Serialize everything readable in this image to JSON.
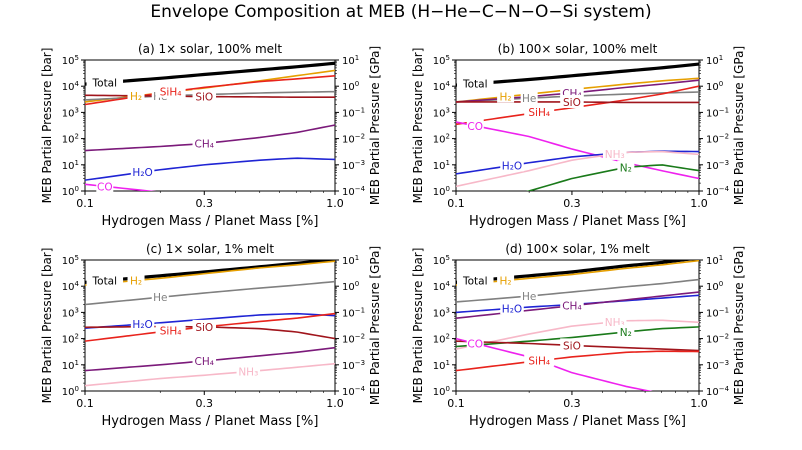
{
  "figure": {
    "title": "Envelope Composition at MEB (H−He−C−N−O−Si system)"
  },
  "colors": {
    "Total": "#000000",
    "H2": "#e69f00",
    "He": "#808080",
    "SiH4": "#e8231c",
    "SiO": "#a0151c",
    "CH4": "#7b1a7a",
    "H2O": "#1f24d4",
    "CO": "#ee22ee",
    "NH3": "#f7b8c8",
    "N2": "#1a7a1a"
  },
  "chart_data": [
    {
      "type": "line",
      "panel": "a",
      "title": "(a) 1× solar, 100% melt",
      "xlabel": "Hydrogen Mass / Planet Mass [%]",
      "ylabel": "MEB Partial Pressure [bar]",
      "y2label": "MEB Partial Pressure [GPa]",
      "xscale": "log",
      "yscale": "log",
      "xlim": [
        0.1,
        1.0
      ],
      "ylim": [
        1,
        100000
      ],
      "y2lim": [
        0.0001,
        10
      ],
      "xticks": [
        "0.1",
        "0.3",
        "1.0"
      ],
      "yticks": [
        "10^0",
        "10^1",
        "10^2",
        "10^3",
        "10^4",
        "10^5"
      ],
      "y2ticks": [
        "10^-4",
        "10^-3",
        "10^-2",
        "10^-1",
        "10^0",
        "10^1"
      ],
      "x": [
        0.1,
        0.2,
        0.3,
        0.5,
        0.7,
        1.0
      ],
      "series": [
        {
          "name": "Total",
          "values": [
            12000,
            20000,
            28000,
            42000,
            55000,
            75000
          ]
        },
        {
          "name": "H2",
          "values": [
            2500,
            5500,
            8500,
            16000,
            25000,
            40000
          ]
        },
        {
          "name": "He",
          "values": [
            3000,
            4200,
            4800,
            5500,
            5900,
            6200
          ]
        },
        {
          "name": "SiH4",
          "values": [
            2000,
            5500,
            9000,
            15000,
            19000,
            25000
          ]
        },
        {
          "name": "SiO",
          "values": [
            4500,
            4200,
            4000,
            3900,
            3800,
            3800
          ]
        },
        {
          "name": "CH4",
          "values": [
            35,
            50,
            65,
            110,
            170,
            330
          ]
        },
        {
          "name": "H2O",
          "values": [
            2.6,
            6.5,
            10,
            15,
            18,
            16
          ]
        },
        {
          "name": "CO",
          "values": [
            1.8,
            0.9,
            0.5,
            0.2,
            0.1,
            0.05
          ]
        }
      ]
    },
    {
      "type": "line",
      "panel": "b",
      "title": "(b) 100× solar, 100% melt",
      "xlabel": "Hydrogen Mass / Planet Mass [%]",
      "ylabel": "MEB Partial Pressure [bar]",
      "y2label": "MEB Partial Pressure [GPa]",
      "xscale": "log",
      "yscale": "log",
      "xlim": [
        0.1,
        1.0
      ],
      "ylim": [
        1,
        100000
      ],
      "y2lim": [
        0.0001,
        10
      ],
      "xticks": [
        "0.1",
        "0.3",
        "1.0"
      ],
      "yticks": [
        "10^0",
        "10^1",
        "10^2",
        "10^3",
        "10^4",
        "10^5"
      ],
      "y2ticks": [
        "10^-4",
        "10^-3",
        "10^-2",
        "10^-1",
        "10^0",
        "10^1"
      ],
      "x": [
        0.1,
        0.2,
        0.3,
        0.5,
        0.7,
        1.0
      ],
      "series": [
        {
          "name": "Total",
          "values": [
            11000,
            18000,
            25000,
            38000,
            50000,
            70000
          ]
        },
        {
          "name": "H2",
          "values": [
            2500,
            5000,
            7500,
            12000,
            16000,
            20000
          ]
        },
        {
          "name": "He",
          "values": [
            2500,
            3500,
            4200,
            5000,
            5500,
            6000
          ]
        },
        {
          "name": "CH4",
          "values": [
            2500,
            4000,
            5500,
            9000,
            12000,
            17000
          ]
        },
        {
          "name": "SiH4",
          "values": [
            350,
            900,
            1500,
            3000,
            5000,
            10000
          ]
        },
        {
          "name": "SiO",
          "values": [
            2500,
            2500,
            2500,
            2400,
            2400,
            2400
          ]
        },
        {
          "name": "CO",
          "values": [
            430,
            120,
            40,
            12,
            6,
            3
          ]
        },
        {
          "name": "H2O",
          "values": [
            4.5,
            12,
            20,
            30,
            33,
            32
          ]
        },
        {
          "name": "NH3",
          "values": [
            1.5,
            6,
            15,
            30,
            32,
            25
          ]
        },
        {
          "name": "N2",
          "values": [
            0.2,
            1,
            3,
            8,
            10,
            6
          ]
        }
      ]
    },
    {
      "type": "line",
      "panel": "c",
      "title": "(c) 1× solar, 1% melt",
      "xlabel": "Hydrogen Mass / Planet Mass [%]",
      "ylabel": "MEB Partial Pressure [bar]",
      "y2label": "MEB Partial Pressure [GPa]",
      "xscale": "log",
      "yscale": "log",
      "xlim": [
        0.1,
        1.0
      ],
      "ylim": [
        1,
        100000
      ],
      "y2lim": [
        0.0001,
        10
      ],
      "xticks": [
        "0.1",
        "0.3",
        "1.0"
      ],
      "yticks": [
        "10^0",
        "10^1",
        "10^2",
        "10^3",
        "10^4",
        "10^5"
      ],
      "y2ticks": [
        "10^-4",
        "10^-3",
        "10^-2",
        "10^-1",
        "10^0",
        "10^1"
      ],
      "x": [
        0.1,
        0.2,
        0.3,
        0.5,
        0.7,
        1.0
      ],
      "series": [
        {
          "name": "Total",
          "values": [
            14000,
            25000,
            35000,
            55000,
            75000,
            100000
          ]
        },
        {
          "name": "H2",
          "values": [
            11000,
            20000,
            30000,
            50000,
            65000,
            90000
          ]
        },
        {
          "name": "He",
          "values": [
            2000,
            3800,
            5500,
            8500,
            11000,
            15000
          ]
        },
        {
          "name": "H2O",
          "values": [
            250,
            400,
            550,
            800,
            900,
            750
          ]
        },
        {
          "name": "SiH4",
          "values": [
            80,
            180,
            280,
            450,
            600,
            900
          ]
        },
        {
          "name": "SiO",
          "values": [
            270,
            290,
            280,
            240,
            180,
            100
          ]
        },
        {
          "name": "CH4",
          "values": [
            6,
            10,
            14,
            22,
            30,
            45
          ]
        },
        {
          "name": "NH3",
          "values": [
            1.6,
            3,
            4,
            6,
            8,
            11
          ]
        }
      ]
    },
    {
      "type": "line",
      "panel": "d",
      "title": "(d) 100× solar, 1% melt",
      "xlabel": "Hydrogen Mass / Planet Mass [%]",
      "ylabel": "MEB Partial Pressure [bar]",
      "y2label": "MEB Partial Pressure [GPa]",
      "xscale": "log",
      "yscale": "log",
      "xlim": [
        0.1,
        1.0
      ],
      "ylim": [
        1,
        100000
      ],
      "y2lim": [
        0.0001,
        10
      ],
      "xticks": [
        "0.1",
        "0.3",
        "1.0"
      ],
      "yticks": [
        "10^0",
        "10^1",
        "10^2",
        "10^3",
        "10^4",
        "10^5"
      ],
      "y2ticks": [
        "10^-4",
        "10^-3",
        "10^-2",
        "10^-1",
        "10^0",
        "10^1"
      ],
      "x": [
        0.1,
        0.2,
        0.3,
        0.5,
        0.7,
        1.0
      ],
      "series": [
        {
          "name": "Total",
          "values": [
            14000,
            25000,
            35000,
            60000,
            80000,
            120000
          ]
        },
        {
          "name": "H2",
          "values": [
            11000,
            20000,
            28000,
            48000,
            65000,
            95000
          ]
        },
        {
          "name": "He",
          "values": [
            2500,
            4200,
            6000,
            9500,
            12500,
            18000
          ]
        },
        {
          "name": "H2O",
          "values": [
            1000,
            1600,
            2000,
            2800,
            3500,
            4500
          ]
        },
        {
          "name": "CH4",
          "values": [
            600,
            1200,
            1800,
            3000,
            4200,
            6000
          ]
        },
        {
          "name": "NH3",
          "values": [
            40,
            150,
            300,
            480,
            500,
            420
          ]
        },
        {
          "name": "N2",
          "values": [
            50,
            80,
            110,
            180,
            240,
            280
          ]
        },
        {
          "name": "SiO",
          "values": [
            80,
            65,
            55,
            45,
            40,
            35
          ]
        },
        {
          "name": "SiH4",
          "values": [
            6,
            13,
            20,
            30,
            33,
            32
          ]
        },
        {
          "name": "CO",
          "values": [
            100,
            20,
            5,
            1.5,
            0.8,
            0.4
          ]
        }
      ]
    }
  ],
  "labels": {
    "a": [
      [
        "Total",
        "Total"
      ],
      [
        "H2",
        "H₂"
      ],
      [
        "He",
        "He"
      ],
      [
        "SiH4",
        "SiH₄"
      ],
      [
        "SiO",
        "SiO"
      ],
      [
        "CH4",
        "CH₄"
      ],
      [
        "H2O",
        "H₂O"
      ],
      [
        "CO",
        "CO"
      ]
    ],
    "b": [
      [
        "Total",
        "Total"
      ],
      [
        "H2",
        "H₂"
      ],
      [
        "He",
        "He"
      ],
      [
        "CH4",
        "CH₄"
      ],
      [
        "SiH4",
        "SiH₄"
      ],
      [
        "SiO",
        "SiO"
      ],
      [
        "H2O",
        "H₂O"
      ],
      [
        "CO",
        "CO"
      ],
      [
        "NH3",
        "NH₃"
      ],
      [
        "N2",
        "N₂"
      ]
    ],
    "c": [
      [
        "Total",
        "Total"
      ],
      [
        "H2",
        "H₂"
      ],
      [
        "He",
        "He"
      ],
      [
        "H2O",
        "H₂O"
      ],
      [
        "SiH4",
        "SiH₄"
      ],
      [
        "SiO",
        "SiO"
      ],
      [
        "CH4",
        "CH₄"
      ],
      [
        "NH3",
        "NH₃"
      ]
    ],
    "d": [
      [
        "Total",
        "Total"
      ],
      [
        "H2",
        "H₂"
      ],
      [
        "He",
        "He"
      ],
      [
        "H2O",
        "H₂O"
      ],
      [
        "CH4",
        "CH₄"
      ],
      [
        "NH3",
        "NH₃"
      ],
      [
        "N2",
        "N₂"
      ],
      [
        "SiO",
        "SiO"
      ],
      [
        "SiH4",
        "SiH₄"
      ],
      [
        "CO",
        "CO"
      ]
    ]
  }
}
